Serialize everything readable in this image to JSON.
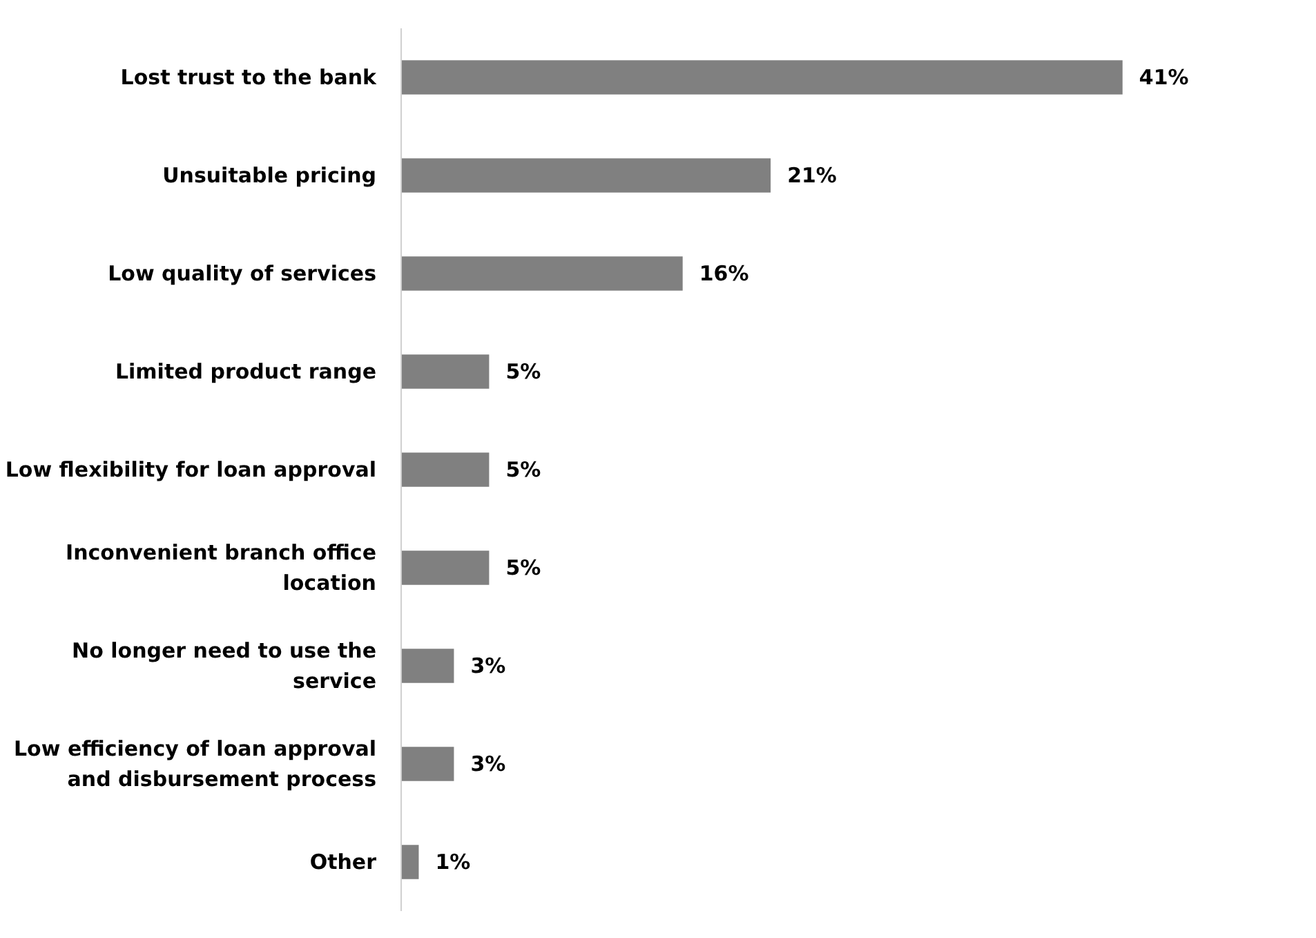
{
  "chart_data": {
    "type": "bar",
    "orientation": "horizontal",
    "categories": [
      "Lost trust to the bank",
      "Unsuitable pricing",
      "Low quality of services",
      "Limited product range",
      "Low flexibility for loan approval",
      "Inconvenient branch office\nlocation",
      "No longer need to use the\nservice",
      "Low efficiency of loan approval\nand disbursement process",
      "Other"
    ],
    "values": [
      41,
      21,
      16,
      5,
      5,
      5,
      3,
      3,
      1
    ],
    "value_labels": [
      "41%",
      "21%",
      "16%",
      "5%",
      "5%",
      "5%",
      "3%",
      "3%",
      "1%"
    ],
    "color": "#808080",
    "grid": false,
    "tick_labels": "y"
  }
}
